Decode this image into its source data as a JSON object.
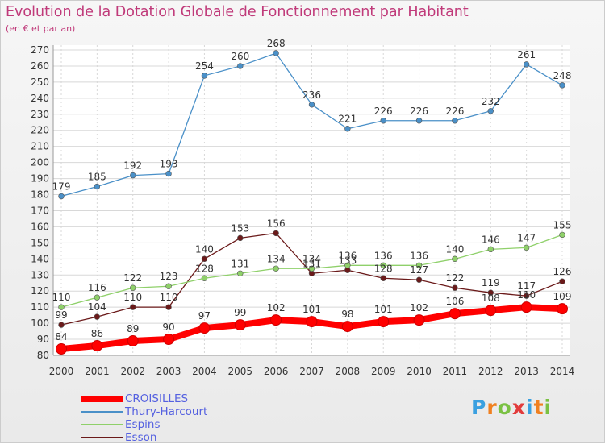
{
  "title": "Evolution de la Dotation Globale de Fonctionnement par Habitant",
  "subtitle": "(en € et par an)",
  "chart_data": {
    "type": "line",
    "x": [
      2000,
      2001,
      2002,
      2003,
      2004,
      2005,
      2006,
      2007,
      2008,
      2009,
      2010,
      2011,
      2012,
      2013,
      2014
    ],
    "ylim": [
      80,
      270
    ],
    "yticks": [
      80,
      90,
      100,
      110,
      120,
      130,
      140,
      150,
      160,
      170,
      180,
      190,
      200,
      210,
      220,
      230,
      240,
      250,
      260,
      270
    ],
    "grid": true,
    "legend_position": "bottom-left",
    "series": [
      {
        "name": "CROISILLES",
        "color": "#ff0000",
        "values": [
          84,
          86,
          89,
          90,
          97,
          99,
          102,
          101,
          98,
          101,
          102,
          106,
          108,
          110,
          109
        ]
      },
      {
        "name": "Thury-Harcourt",
        "color": "#4a90c8",
        "values": [
          179,
          185,
          192,
          193,
          254,
          260,
          268,
          236,
          221,
          226,
          226,
          226,
          232,
          261,
          248
        ]
      },
      {
        "name": "Espins",
        "color": "#8fd06a",
        "values": [
          110,
          116,
          122,
          123,
          128,
          131,
          134,
          134,
          136,
          136,
          136,
          140,
          146,
          147,
          155
        ]
      },
      {
        "name": "Esson",
        "color": "#6b1a1a",
        "values": [
          99,
          104,
          110,
          110,
          140,
          153,
          156,
          131,
          133,
          128,
          127,
          122,
          119,
          117,
          126
        ]
      }
    ]
  },
  "logo": {
    "letters": [
      "P",
      "r",
      "o",
      "x",
      "i",
      "t",
      "i"
    ],
    "colors": [
      "#3aa0e0",
      "#f08020",
      "#7ac143",
      "#e23b3b",
      "#3aa0e0",
      "#f08020",
      "#7ac143"
    ]
  }
}
